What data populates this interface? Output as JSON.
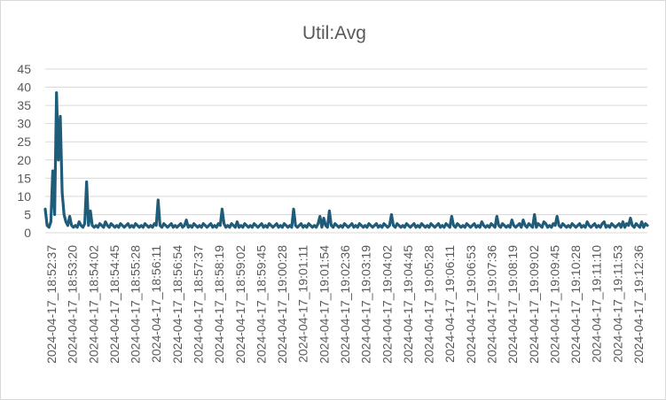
{
  "chart_data": {
    "type": "line",
    "title": "Util:Avg",
    "xlabel": "",
    "ylabel": "",
    "ylim": [
      0,
      45
    ],
    "yticks": [
      0,
      5,
      10,
      15,
      20,
      25,
      30,
      35,
      40,
      45
    ],
    "grid": true,
    "legend": "none",
    "color": "#1f5c7a",
    "x_tick_labels": [
      "2024-04-17_18:52:37",
      "2024-04-17_18:53:20",
      "2024-04-17_18:54:02",
      "2024-04-17_18:54:45",
      "2024-04-17_18:55:28",
      "2024-04-17_18:56:11",
      "2024-04-17_18:56:54",
      "2024-04-17_18:57:37",
      "2024-04-17_18:58:19",
      "2024-04-17_18:59:02",
      "2024-04-17_18:59:45",
      "2024-04-17_19:00:28",
      "2024-04-17_19:01:11",
      "2024-04-17_19:01:54",
      "2024-04-17_19:02:36",
      "2024-04-17_19:03:19",
      "2024-04-17_19:04:02",
      "2024-04-17_19:04:45",
      "2024-04-17_19:05:28",
      "2024-04-17_19:06:11",
      "2024-04-17_19:06:53",
      "2024-04-17_19:07:36",
      "2024-04-17_19:08:19",
      "2024-04-17_19:09:02",
      "2024-04-17_19:09:45",
      "2024-04-17_19:10:28",
      "2024-04-17_19:11:10",
      "2024-04-17_19:11:53",
      "2024-04-17_19:12:36"
    ],
    "series": [
      {
        "values": [
          6.5,
          2.0,
          1.5,
          3.0,
          17.0,
          5.0,
          38.5,
          20.0,
          32.0,
          11.0,
          5.0,
          3.0,
          2.0,
          4.5,
          2.0,
          1.5,
          2.0,
          1.5,
          3.0,
          2.0,
          1.5,
          2.5,
          14.0,
          2.0,
          6.0,
          2.0,
          1.5,
          2.0,
          1.5,
          2.5,
          2.0,
          1.5,
          3.0,
          2.0,
          1.5,
          2.5,
          2.0,
          1.5,
          2.0,
          1.5,
          2.5,
          2.0,
          1.5,
          2.0,
          2.5,
          1.5,
          2.0,
          1.5,
          2.5,
          2.0,
          1.5,
          2.0,
          1.5,
          2.5,
          2.0,
          1.5,
          2.0,
          1.5,
          2.5,
          2.0,
          9.0,
          2.0,
          1.5,
          2.5,
          2.0,
          1.5,
          2.0,
          2.5,
          1.5,
          2.0,
          1.5,
          2.0,
          2.5,
          1.5,
          2.0,
          3.5,
          1.5,
          2.0,
          1.5,
          2.5,
          2.0,
          1.5,
          2.0,
          1.5,
          2.5,
          2.0,
          1.5,
          2.0,
          2.5,
          1.5,
          2.0,
          1.5,
          2.5,
          2.0,
          6.5,
          2.5,
          1.5,
          2.0,
          1.5,
          2.5,
          2.0,
          1.5,
          3.0,
          1.5,
          2.0,
          1.5,
          2.5,
          2.0,
          1.5,
          2.0,
          1.5,
          2.5,
          2.0,
          1.5,
          2.0,
          2.5,
          1.5,
          2.0,
          1.5,
          2.5,
          2.0,
          1.5,
          2.0,
          2.5,
          1.5,
          2.0,
          1.5,
          2.5,
          2.0,
          1.5,
          2.0,
          1.5,
          6.5,
          2.0,
          1.5,
          2.0,
          2.5,
          1.5,
          2.0,
          1.5,
          2.5,
          2.0,
          1.5,
          2.0,
          1.5,
          2.5,
          4.5,
          1.5,
          4.0,
          2.0,
          1.5,
          6.0,
          2.0,
          1.5,
          2.5,
          2.0,
          1.5,
          2.0,
          1.5,
          2.5,
          2.0,
          1.5,
          2.0,
          2.5,
          1.5,
          2.0,
          1.5,
          2.5,
          2.0,
          1.5,
          2.0,
          1.5,
          2.5,
          2.0,
          1.5,
          2.0,
          2.5,
          1.5,
          2.0,
          1.5,
          2.5,
          2.0,
          1.5,
          2.0,
          5.0,
          2.0,
          1.5,
          2.5,
          2.0,
          1.5,
          2.0,
          1.5,
          2.5,
          2.0,
          1.5,
          2.0,
          2.5,
          1.5,
          2.0,
          1.5,
          2.5,
          2.0,
          1.5,
          2.0,
          1.5,
          2.5,
          2.0,
          1.5,
          2.0,
          2.5,
          1.5,
          2.0,
          1.5,
          2.5,
          2.0,
          1.5,
          4.5,
          2.0,
          1.5,
          2.5,
          2.0,
          1.5,
          2.0,
          1.5,
          2.5,
          2.0,
          1.5,
          2.0,
          2.5,
          1.5,
          2.0,
          1.5,
          3.0,
          2.0,
          1.5,
          2.0,
          1.5,
          2.5,
          2.0,
          1.5,
          4.5,
          2.0,
          1.5,
          2.5,
          2.0,
          1.5,
          2.0,
          1.5,
          3.5,
          2.0,
          1.5,
          2.0,
          2.5,
          1.5,
          3.5,
          2.0,
          1.5,
          2.5,
          2.0,
          1.5,
          5.0,
          1.5,
          2.5,
          2.0,
          1.5,
          3.0,
          2.5,
          1.5,
          2.0,
          1.5,
          2.5,
          2.0,
          4.5,
          2.0,
          1.5,
          2.5,
          2.0,
          1.5,
          2.0,
          1.5,
          2.5,
          2.0,
          1.5,
          2.0,
          2.5,
          1.5,
          2.0,
          1.5,
          3.0,
          2.0,
          1.5,
          2.0,
          2.5,
          1.5,
          2.0,
          1.5,
          2.5,
          3.0,
          1.5,
          2.0,
          1.5,
          2.5,
          2.0,
          1.5,
          2.0,
          2.5,
          1.5,
          3.0,
          1.5,
          2.5,
          2.0,
          4.0,
          2.0,
          1.5,
          2.5,
          2.0,
          1.5,
          3.0,
          1.5,
          2.5,
          2.0
        ]
      }
    ]
  }
}
